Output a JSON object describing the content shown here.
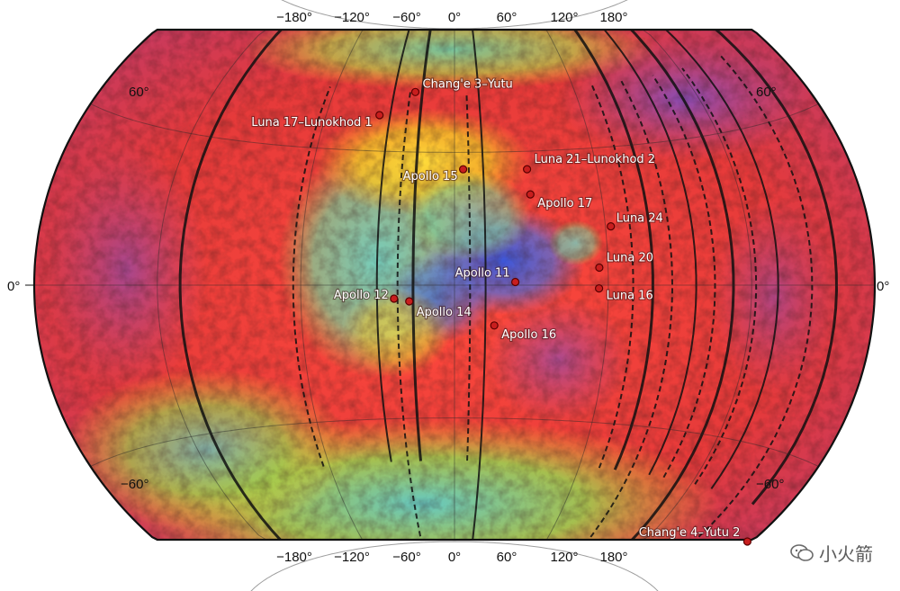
{
  "map": {
    "graticule": {
      "top_lon_labels": [
        "−180°",
        "−120°",
        "−60°",
        "0°",
        "60°",
        "120°",
        "180°"
      ],
      "bottom_lon_labels": [
        "−180°",
        "−120°",
        "−60°",
        "0°",
        "60°",
        "120°",
        "180°"
      ],
      "lat_labels": {
        "north_left": "60°",
        "north_right": "60°",
        "equator_left": "0°",
        "equator_right": "0°",
        "south_left": "−60°",
        "south_right": "−60°"
      }
    },
    "colors": {
      "frame": "#111111",
      "highland": "#e8383a",
      "mare_warm": "#f2d21e",
      "mare_mid": "#5ec8b8",
      "mare_cool": "#3a5fd8",
      "polar": "#8ad45a",
      "site_marker": "#c81e1e"
    },
    "landing_sites": [
      {
        "name": "Chang'e 3–Yutu",
        "lon": -19.5,
        "lat": 44.1
      },
      {
        "name": "Luna 17–Lunokhod 1",
        "lon": -35.0,
        "lat": 38.3
      },
      {
        "name": "Apollo 15",
        "lon": 3.6,
        "lat": 26.1
      },
      {
        "name": "Luna 21–Lunokhod 2",
        "lon": 30.4,
        "lat": 25.9
      },
      {
        "name": "Apollo 17",
        "lon": 30.8,
        "lat": 20.2
      },
      {
        "name": "Luna 24",
        "lon": 62.2,
        "lat": 12.7
      },
      {
        "name": "Luna 20",
        "lon": 56.5,
        "lat": 3.8
      },
      {
        "name": "Apollo 11",
        "lon": 23.5,
        "lat": 0.7
      },
      {
        "name": "Luna 16",
        "lon": 56.3,
        "lat": -0.7
      },
      {
        "name": "Apollo 12",
        "lon": -23.4,
        "lat": -3.0
      },
      {
        "name": "Apollo 14",
        "lon": -17.5,
        "lat": -3.6
      },
      {
        "name": "Apollo 16",
        "lon": 15.5,
        "lat": -9.0
      },
      {
        "name": "Chang'e 4–Yutu 2",
        "lon": 177.6,
        "lat": -45.4
      }
    ]
  },
  "watermark": {
    "text": "小火箭",
    "icon": "wechat-icon"
  }
}
